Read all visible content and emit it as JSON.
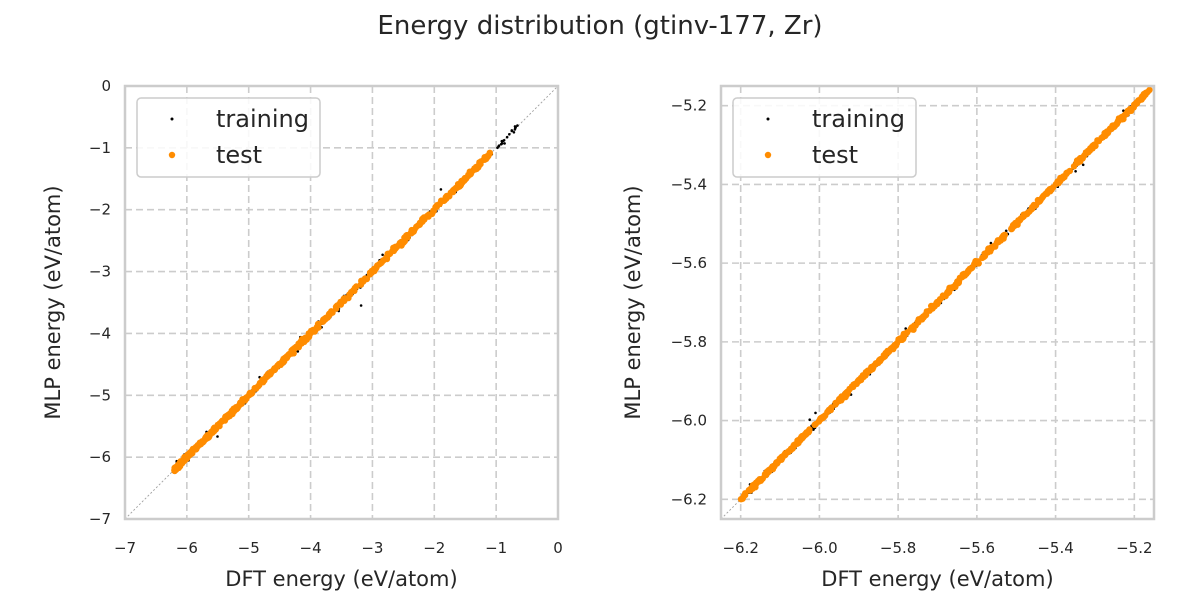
{
  "figure": {
    "title": "Energy distribution (gtinv-177, Zr)"
  },
  "colors": {
    "training": "#000000",
    "test": "#ff8c00",
    "grid": "#cccccc",
    "spine": "#cccccc",
    "diagonal": "#a0a0a0"
  },
  "chart_data": [
    {
      "type": "scatter",
      "xlabel": "DFT energy (eV/atom)",
      "ylabel": "MLP energy (eV/atom)",
      "xlim": [
        -7,
        0
      ],
      "ylim": [
        -7,
        0
      ],
      "xticks": [
        "−7",
        "−6",
        "−5",
        "−4",
        "−3",
        "−2",
        "−1",
        "0"
      ],
      "yticks": [
        "−7",
        "−6",
        "−5",
        "−4",
        "−3",
        "−2",
        "−1",
        "0"
      ],
      "grid": true,
      "legend": "upper-left",
      "diagonal": true,
      "series": [
        {
          "name": "training",
          "color": "#000000",
          "x_range": [
            -6.2,
            -0.65
          ],
          "y_range": [
            -6.2,
            -0.72
          ]
        },
        {
          "name": "test",
          "color": "#ff8c00",
          "x_range": [
            -6.2,
            -1.1
          ],
          "y_range": [
            -6.2,
            -1.1
          ]
        }
      ]
    },
    {
      "type": "scatter",
      "xlabel": "DFT energy (eV/atom)",
      "ylabel": "MLP energy (eV/atom)",
      "xlim": [
        -6.25,
        -5.15
      ],
      "ylim": [
        -6.25,
        -5.15
      ],
      "xticks": [
        "−6.2",
        "−6.0",
        "−5.8",
        "−5.6",
        "−5.4",
        "−5.2"
      ],
      "yticks": [
        "−6.2",
        "−6.0",
        "−5.8",
        "−5.6",
        "−5.4",
        "−5.2"
      ],
      "grid": true,
      "legend": "upper-left",
      "diagonal": true,
      "series": [
        {
          "name": "training",
          "color": "#000000",
          "x_range": [
            -6.2,
            -5.16
          ],
          "y_range": [
            -6.2,
            -5.16
          ]
        },
        {
          "name": "test",
          "color": "#ff8c00",
          "x_range": [
            -6.2,
            -5.16
          ],
          "y_range": [
            -6.2,
            -5.16
          ]
        }
      ]
    }
  ]
}
